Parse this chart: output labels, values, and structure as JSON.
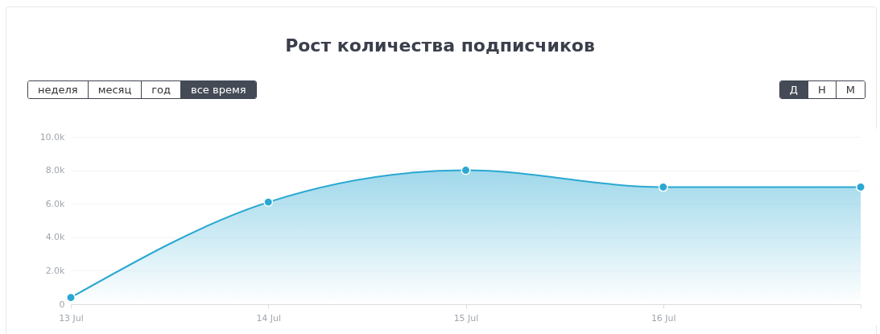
{
  "chart_data": {
    "type": "area",
    "title": "Рост количества подписчиков",
    "annotations": [
      "неделя",
      "месяц",
      "год",
      "все время",
      "Д",
      "Н",
      "М"
    ],
    "categories": [
      "13 Jul",
      "14 Jul",
      "15 Jul",
      "16 Jul",
      null
    ],
    "series": [
      {
        "color": "#2aa8d2",
        "values": [
          400,
          6100,
          8000,
          7000,
          7000
        ]
      }
    ],
    "ylim": [
      0,
      10000
    ],
    "yticks": [
      0,
      {
        "value": 2000,
        "label": "2.0k"
      },
      {
        "value": 4000,
        "label": "4.0k"
      },
      {
        "value": 6000,
        "label": "6.0k"
      },
      {
        "value": 8000,
        "label": "8.0k"
      },
      {
        "value": 10000,
        "label": "10.0k"
      }
    ],
    "grid": "y",
    "marker": "circle",
    "line_style": "solid"
  }
}
